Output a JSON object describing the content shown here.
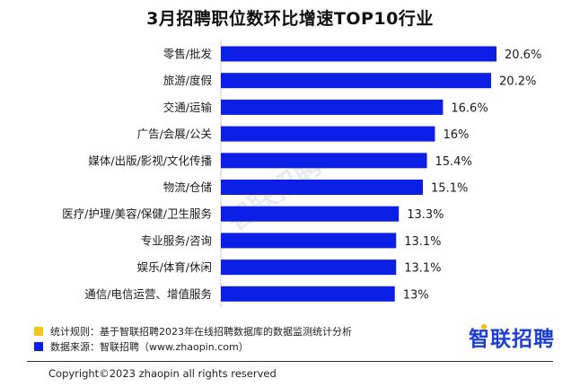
{
  "chart_data": {
    "type": "bar",
    "orientation": "horizontal",
    "title": "3月招聘职位数环比增速TOP10行业",
    "categories": [
      "零售/批发",
      "旅游/度假",
      "交通/运输",
      "广告/会展/公关",
      "媒体/出版/影视/文化传播",
      "物流/仓储",
      "医疗/护理/美容/保健/卫生服务",
      "专业服务/咨询",
      "娱乐/体育/休闲",
      "通信/电信运营、增值服务"
    ],
    "values": [
      20.6,
      20.2,
      16.6,
      16,
      15.4,
      15.1,
      13.3,
      13.1,
      13.1,
      13
    ],
    "value_labels": [
      "20.6%",
      "20.2%",
      "16.6%",
      "16%",
      "15.4%",
      "15.1%",
      "13.3%",
      "13.1%",
      "13.1%",
      "13%"
    ],
    "bar_color": "#0b1fe6",
    "xlim": [
      0,
      22
    ],
    "grid": false,
    "axes_visible": false
  },
  "legend": {
    "rule": {
      "color": "#f5c518",
      "text": "统计规则：基于智联招聘2023年在线招聘数据库的数据监测统计分析"
    },
    "source": {
      "color": "#0b1fe6",
      "text": "数据来源：智联招聘（www.zhaopin.com）"
    }
  },
  "brand": {
    "logo_text": "智联招聘",
    "watermark_text": "智联招聘",
    "color": "#1d3fd8"
  },
  "footer": {
    "copyright": "Copyright©2023 zhaopin all rights reserved"
  }
}
